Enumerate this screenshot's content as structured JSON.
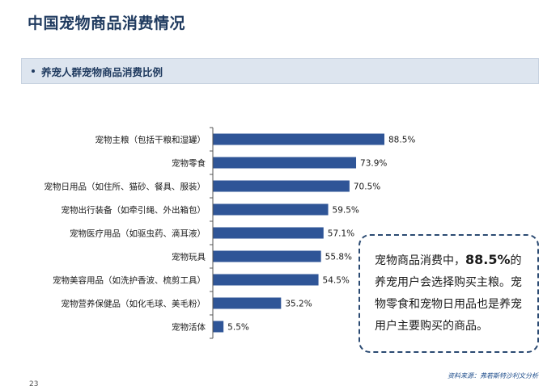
{
  "header": {
    "title": "中国宠物商品消费情况"
  },
  "section": {
    "label": "养宠人群宠物商品消费比例"
  },
  "chart_data": {
    "type": "bar",
    "orientation": "horizontal",
    "categories": [
      "宠物主粮（包括干粮和湿罐）",
      "宠物零食",
      "宠物日用品（如住所、猫砂、餐具、服装）",
      "宠物出行装备（如牵引绳、外出箱包）",
      "宠物医疗用品（如驱虫药、滴耳液）",
      "宠物玩具",
      "宠物美容用品（如洗护香波、梳剪工具）",
      "宠物营养保健品（如化毛球、美毛粉）",
      "宠物活体"
    ],
    "values": [
      88.5,
      73.9,
      70.5,
      59.5,
      57.1,
      55.8,
      54.5,
      35.2,
      5.5
    ],
    "value_labels": [
      "88.5%",
      "73.9%",
      "70.5%",
      "59.5%",
      "57.1%",
      "55.8%",
      "54.5%",
      "35.2%",
      "5.5%"
    ],
    "xlim": [
      0,
      100
    ],
    "bar_color": "#2f5597",
    "grid": false,
    "legend": "none"
  },
  "callout": {
    "part1": "宠物商品消费中，",
    "highlight": "88.5%",
    "part2": "的养宠用户会选择购买主粮。宠物零食和宠物日用品也是养宠用户主要购买的商品。"
  },
  "footer": {
    "page_number": "23",
    "source": "资料来源：弗若斯特沙利文分析"
  }
}
